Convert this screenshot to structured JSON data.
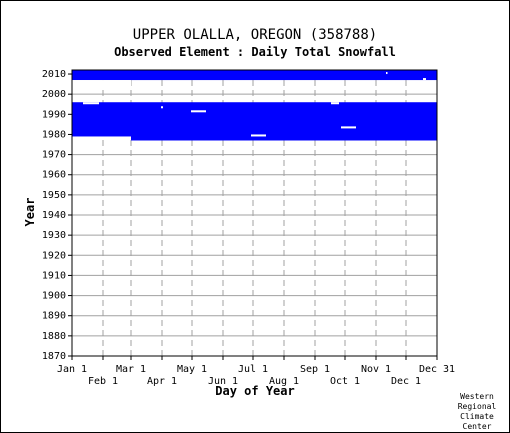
{
  "chart_data": {
    "type": "heatmap",
    "title": "UPPER OLALLA, OREGON   (358788)",
    "subtitle": "Observed Element : Daily Total Snowfall",
    "xlabel": "Day of Year",
    "ylabel": "Year",
    "xlim": [
      1,
      366
    ],
    "ylim": [
      1870,
      2012
    ],
    "x_ticks_top_row": [
      {
        "label": "Jan 1",
        "day": 1
      },
      {
        "label": "Mar 1",
        "day": 60
      },
      {
        "label": "May 1",
        "day": 121
      },
      {
        "label": "Jul 1",
        "day": 182
      },
      {
        "label": "Sep 1",
        "day": 244
      },
      {
        "label": "Nov 1",
        "day": 305
      },
      {
        "label": "Dec 31",
        "day": 366
      }
    ],
    "x_ticks_bottom_row": [
      {
        "label": "Feb 1",
        "day": 32
      },
      {
        "label": "Apr 1",
        "day": 91
      },
      {
        "label": "Jun 1",
        "day": 152
      },
      {
        "label": "Aug 1",
        "day": 213
      },
      {
        "label": "Oct 1",
        "day": 274
      },
      {
        "label": "Dec 1",
        "day": 335
      }
    ],
    "y_ticks": [
      1870,
      1880,
      1890,
      1900,
      1910,
      1920,
      1930,
      1940,
      1950,
      1960,
      1970,
      1980,
      1990,
      2000,
      2010
    ],
    "grid": true,
    "data_color": "#0000ff",
    "coverage_blocks": [
      {
        "day_start": 1,
        "day_end": 366,
        "year_start": 2007,
        "year_end": 2012
      },
      {
        "day_start": 1,
        "day_end": 60,
        "year_start": 1979,
        "year_end": 1996
      },
      {
        "day_start": 60,
        "day_end": 366,
        "year_start": 1977,
        "year_end": 1996
      }
    ],
    "gaps": [
      {
        "day_start": 1,
        "day_end": 60,
        "year_start": 2004,
        "year_end": 2007
      },
      {
        "day_start": 12,
        "day_end": 28,
        "year_start": 1995,
        "year_end": 1996
      },
      {
        "day_start": 90,
        "day_end": 92,
        "year_start": 1993,
        "year_end": 1994
      },
      {
        "day_start": 120,
        "day_end": 135,
        "year_start": 1991,
        "year_end": 1992
      },
      {
        "day_start": 180,
        "day_end": 195,
        "year_start": 1979,
        "year_end": 1980
      },
      {
        "day_start": 260,
        "day_end": 268,
        "year_start": 1995,
        "year_end": 1996
      },
      {
        "day_start": 270,
        "day_end": 285,
        "year_start": 1983,
        "year_end": 1984
      },
      {
        "day_start": 315,
        "day_end": 316,
        "year_start": 2010,
        "year_end": 2011
      },
      {
        "day_start": 352,
        "day_end": 355,
        "year_start": 2007,
        "year_end": 2008
      }
    ]
  },
  "credit": {
    "line1": "Western",
    "line2": "Regional",
    "line3": "Climate",
    "line4": "Center"
  }
}
